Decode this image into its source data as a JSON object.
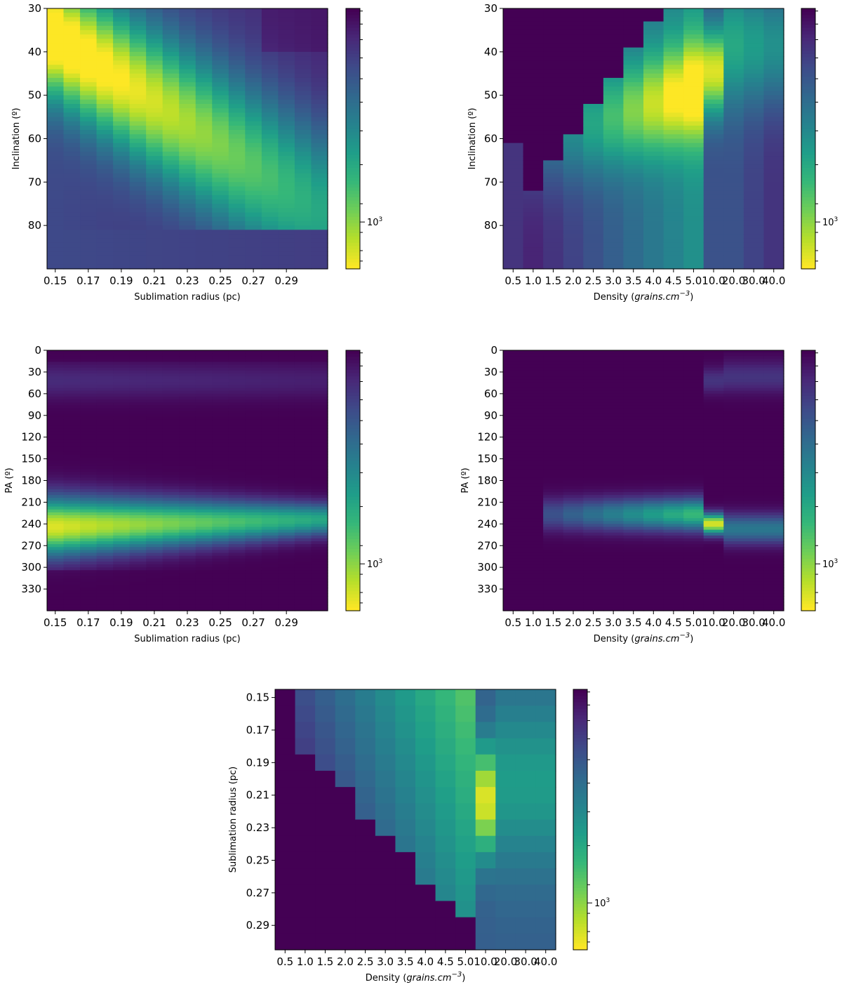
{
  "chart_data": [
    {
      "type": "heatmap",
      "id": "p1",
      "xlabel": "Sublimation radius (pc)",
      "ylabel": "Inclination (º)",
      "x_tick_labels": [
        "0.15",
        "0.17",
        "0.19",
        "0.21",
        "0.23",
        "0.25",
        "0.27",
        "0.29"
      ],
      "y_tick_labels": [
        "30",
        "40",
        "50",
        "60",
        "70",
        "80"
      ],
      "x_cells": 17,
      "y_cells": 60,
      "colorbar_label": "10",
      "colorbar_exponent": "3",
      "colormap": "viridis_r",
      "field": {
        "kind": "incl_radius"
      }
    },
    {
      "type": "heatmap",
      "id": "p2",
      "xlabel": "Density (grains.cm",
      "xlabel_sup": "−3",
      "xlabel_close": ")",
      "ylabel": "Inclination (º)",
      "x_tick_labels": [
        "0.5",
        "1.0",
        "1.5",
        "2.0",
        "2.5",
        "3.0",
        "3.5",
        "4.0",
        "4.5",
        "5.0",
        "10.0",
        "20.0",
        "30.0",
        "40.0"
      ],
      "y_tick_labels": [
        "30",
        "40",
        "50",
        "60",
        "70",
        "80"
      ],
      "x_cells": 14,
      "y_cells": 60,
      "colorbar_label": "10",
      "colorbar_exponent": "3",
      "colormap": "viridis_r",
      "field": {
        "kind": "incl_density"
      }
    },
    {
      "type": "heatmap",
      "id": "p3",
      "xlabel": "Sublimation radius (pc)",
      "ylabel": "PA (º)",
      "x_tick_labels": [
        "0.15",
        "0.17",
        "0.19",
        "0.21",
        "0.23",
        "0.25",
        "0.27",
        "0.29"
      ],
      "y_tick_labels": [
        "0",
        "30",
        "60",
        "90",
        "120",
        "150",
        "180",
        "210",
        "240",
        "270",
        "300",
        "330"
      ],
      "x_cells": 17,
      "y_cells": 90,
      "colorbar_label": "10",
      "colorbar_exponent": "3",
      "colormap": "viridis_r",
      "field": {
        "kind": "pa_radius"
      }
    },
    {
      "type": "heatmap",
      "id": "p4",
      "xlabel": "Density (grains.cm",
      "xlabel_sup": "−3",
      "xlabel_close": ")",
      "ylabel": "PA (º)",
      "x_tick_labels": [
        "0.5",
        "1.0",
        "1.5",
        "2.0",
        "2.5",
        "3.0",
        "3.5",
        "4.0",
        "4.5",
        "5.0",
        "10.0",
        "20.0",
        "30.0",
        "40.0"
      ],
      "y_tick_labels": [
        "0",
        "30",
        "60",
        "90",
        "120",
        "150",
        "180",
        "210",
        "240",
        "270",
        "300",
        "330"
      ],
      "x_cells": 14,
      "y_cells": 90,
      "colorbar_label": "10",
      "colorbar_exponent": "3",
      "colormap": "viridis_r",
      "field": {
        "kind": "pa_density"
      }
    },
    {
      "type": "heatmap",
      "id": "p5",
      "xlabel": "Density (grains.cm",
      "xlabel_sup": "−3",
      "xlabel_close": ")",
      "ylabel": "Sublimation radius (pc)",
      "x_tick_labels": [
        "0.5",
        "1.0",
        "1.5",
        "2.0",
        "2.5",
        "3.0",
        "3.5",
        "4.0",
        "4.5",
        "5.0",
        "10.0",
        "20.0",
        "30.0",
        "40.0"
      ],
      "y_tick_labels": [
        "0.15",
        "0.17",
        "0.19",
        "0.21",
        "0.23",
        "0.25",
        "0.27",
        "0.29"
      ],
      "x_cells": 14,
      "y_cells": 16,
      "colorbar_label": "10",
      "colorbar_exponent": "3",
      "colormap": "viridis_r",
      "field": {
        "kind": "radius_density"
      }
    }
  ]
}
